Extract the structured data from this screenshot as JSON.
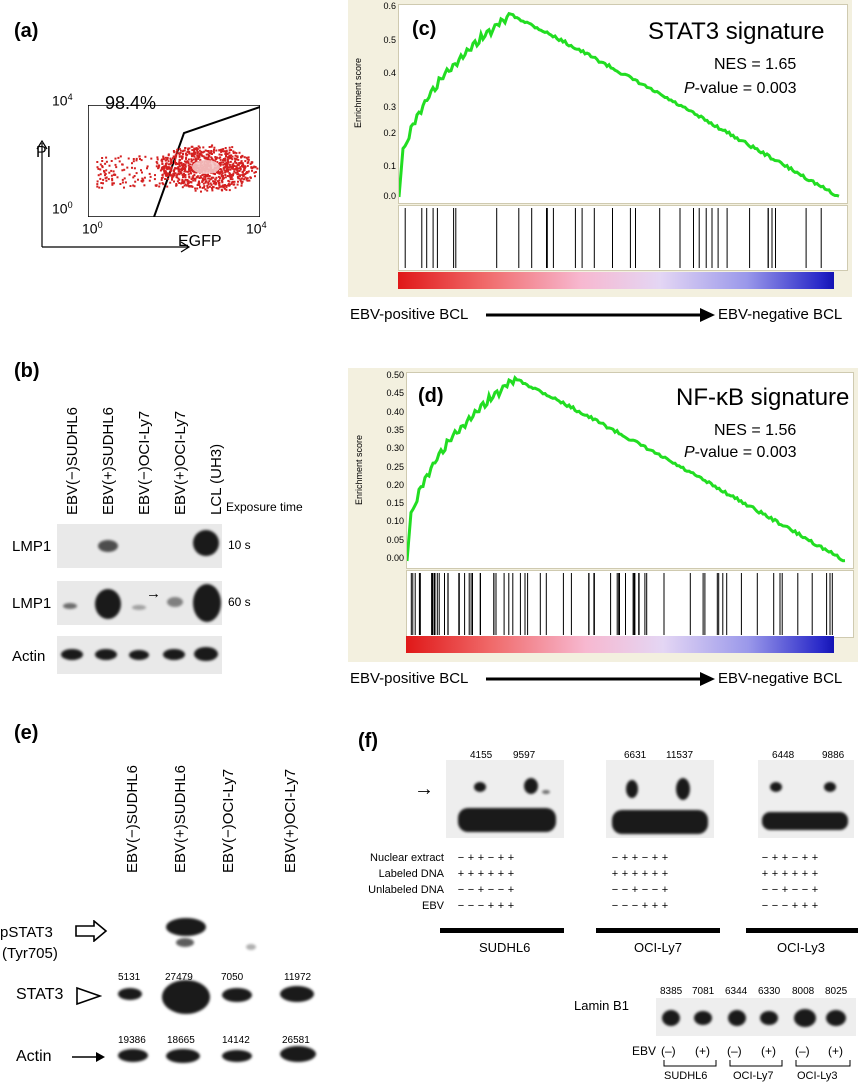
{
  "panels": {
    "a": {
      "label": "(a)",
      "percent": "98.4%",
      "y_axis": "PI",
      "x_axis": "EGFP",
      "y_top": "10",
      "y_top_exp": "4",
      "y_bot": "10",
      "y_bot_exp": "0",
      "x_left": "10",
      "x_left_exp": "0",
      "x_right": "10",
      "x_right_exp": "4"
    },
    "b": {
      "label": "(b)",
      "lanes": [
        "EBV(−)SUDHL6",
        "EBV(+)SUDHL6",
        "EBV(−)OCI-Ly7",
        "EBV(+)OCI-Ly7",
        "LCL (UH3)"
      ],
      "exposure_title": "Exposure time",
      "rows": [
        {
          "label": "LMP1",
          "exposure": "10 s"
        },
        {
          "label": "LMP1",
          "exposure": "60 s"
        },
        {
          "label": "Actin",
          "exposure": ""
        }
      ],
      "arrow": "→"
    },
    "c": {
      "label": "(c)",
      "title": "STAT3 signature",
      "nes": "NES = 1.65",
      "p_prefix": "P",
      "p_suffix": "-value = 0.003",
      "ylabel": "Enrichment score",
      "left_label": "EBV-positive BCL",
      "right_label": "EBV-negative BCL",
      "yticks": [
        "0.6",
        "0.5",
        "0.4",
        "0.3",
        "0.2",
        "0.1",
        "0.0"
      ]
    },
    "d": {
      "label": "(d)",
      "title": "NF-κB signature",
      "nes": "NES = 1.56",
      "p_prefix": "P",
      "p_suffix": "-value = 0.003",
      "ylabel": "Enrichment score",
      "left_label": "EBV-positive BCL",
      "right_label": "EBV-negative BCL",
      "yticks": [
        "0.50",
        "0.45",
        "0.40",
        "0.35",
        "0.30",
        "0.25",
        "0.20",
        "0.15",
        "0.10",
        "0.05",
        "0.00"
      ]
    },
    "e": {
      "label": "(e)",
      "lanes": [
        "EBV(−)SUDHL6",
        "EBV(+)SUDHL6",
        "EBV(−)OCI-Ly7",
        "EBV(+)OCI-Ly7"
      ],
      "pstat3": "pSTAT3",
      "tyr": "(Tyr705)",
      "stat3": "STAT3",
      "actin": "Actin",
      "stat3_values": [
        "5131",
        "27479",
        "7050",
        "11972"
      ],
      "actin_values": [
        "19386",
        "18665",
        "14142",
        "26581"
      ]
    },
    "f": {
      "label": "(f)",
      "arrow": "→",
      "groups": [
        {
          "name": "SUDHL6",
          "values": [
            "4155",
            "9597"
          ],
          "signs": [
            [
              "−",
              "+",
              "+",
              "−",
              "+",
              "+"
            ],
            [
              "+",
              "+",
              "+",
              "+",
              "+",
              "+"
            ],
            [
              "−",
              "−",
              "+",
              "−",
              "−",
              "+"
            ],
            [
              "−",
              "−",
              "−",
              "+",
              "+",
              "+"
            ]
          ]
        },
        {
          "name": "OCI-Ly7",
          "values": [
            "6631",
            "11537"
          ],
          "signs": [
            [
              "−",
              "+",
              "+",
              "−",
              "+",
              "+"
            ],
            [
              "+",
              "+",
              "+",
              "+",
              "+",
              "+"
            ],
            [
              "−",
              "−",
              "+",
              "−",
              "−",
              "+"
            ],
            [
              "−",
              "−",
              "−",
              "+",
              "+",
              "+"
            ]
          ]
        },
        {
          "name": "OCI-Ly3",
          "values": [
            "6448",
            "9886"
          ],
          "signs": [
            [
              "−",
              "+",
              "+",
              "−",
              "+",
              "+"
            ],
            [
              "+",
              "+",
              "+",
              "+",
              "+",
              "+"
            ],
            [
              "−",
              "−",
              "+",
              "−",
              "−",
              "+"
            ],
            [
              "−",
              "−",
              "−",
              "+",
              "+",
              "+"
            ]
          ]
        }
      ],
      "row_labels": [
        "Nuclear extract",
        "Labeled DNA",
        "Unlabeled DNA",
        "EBV"
      ],
      "lamin": "Lamin B1",
      "lamin_values": [
        "8385",
        "7081",
        "6344",
        "6330",
        "8008",
        "8025"
      ],
      "ebv_label": "EBV",
      "ebv_signs": [
        "(–)",
        "(+)",
        "(–)",
        "(+)",
        "(–)",
        "(+)"
      ],
      "bottom_groups": [
        "SUDHL6",
        "OCI-Ly7",
        "OCI-Ly3"
      ]
    }
  },
  "colors": {
    "green": "#22dd22",
    "red": "#d42020"
  }
}
